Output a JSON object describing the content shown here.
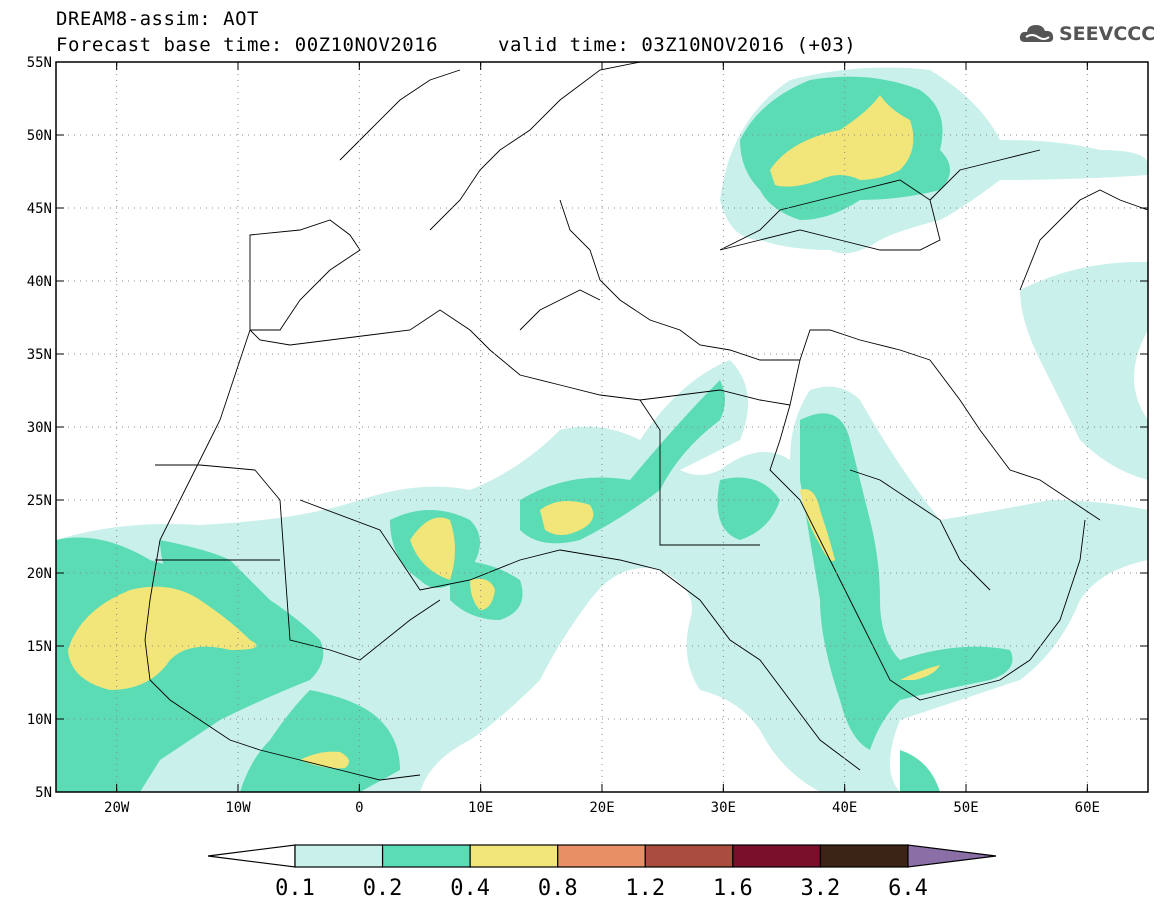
{
  "title": {
    "line1": "DREAM8-assim: AOT",
    "base_time": "Forecast base time: 00Z10NOV2016",
    "valid_time": "valid time: 03Z10NOV2016 (+03)"
  },
  "logo": {
    "text": "SEEVCCC",
    "icon": "cloud-icon"
  },
  "map": {
    "variable": "AOT",
    "projection": "lat-lon",
    "lon_range": [
      -25,
      65
    ],
    "lat_range": [
      5,
      55
    ],
    "lat_ticks": [
      "5N",
      "10N",
      "15N",
      "20N",
      "25N",
      "30N",
      "35N",
      "40N",
      "45N",
      "50N",
      "55N"
    ],
    "lon_ticks": [
      "20W",
      "10W",
      "0",
      "10E",
      "20E",
      "30E",
      "40E",
      "50E",
      "60E"
    ],
    "grid": "dotted"
  },
  "colorbar": {
    "levels": [
      "0.1",
      "0.2",
      "0.4",
      "0.8",
      "1.2",
      "1.6",
      "3.2",
      "6.4"
    ],
    "colors": [
      "#c9f0ea",
      "#5bdcb5",
      "#f2e67a",
      "#e98f66",
      "#a94e3f",
      "#7a0f2c",
      "#3b2416",
      "#8c6ea6"
    ]
  }
}
